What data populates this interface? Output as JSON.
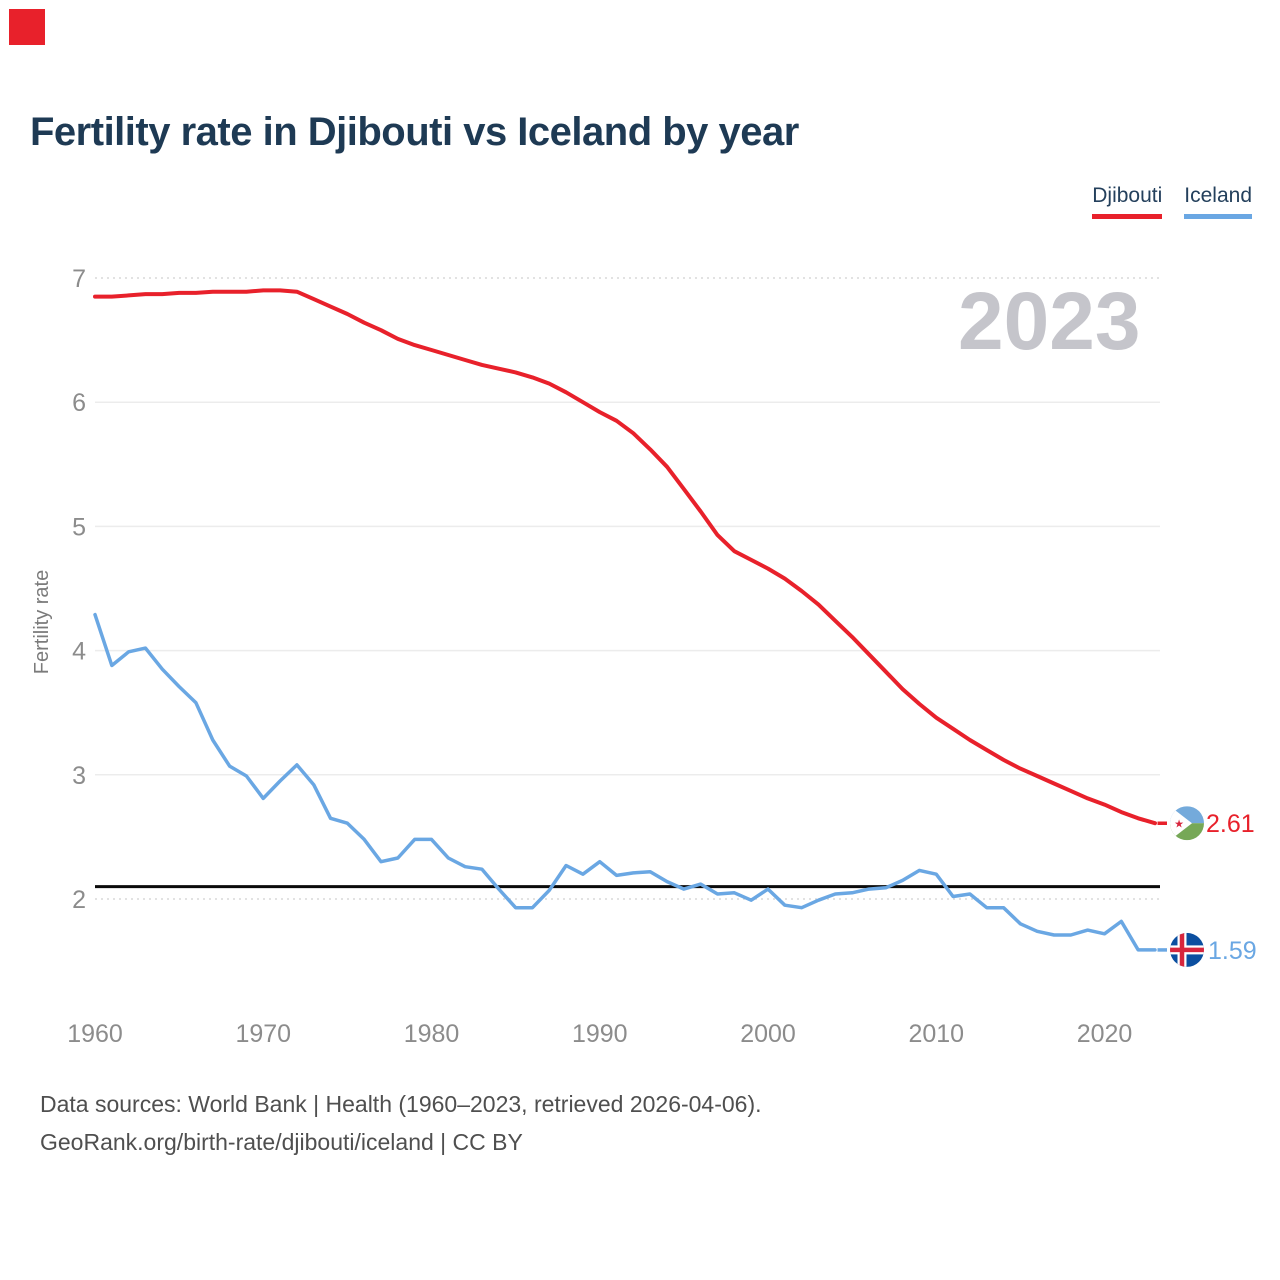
{
  "page": {
    "title": "Fertility rate in Djibouti vs Iceland by year"
  },
  "legend": {
    "djibouti": "Djibouti",
    "iceland": "Iceland"
  },
  "watermark": "2023",
  "end_labels": {
    "djibouti": "2.61",
    "iceland": "1.59"
  },
  "footer": {
    "line1": "Data sources: World Bank | Health (1960–2023, retrieved 2026-04-06).",
    "line2": "GeoRank.org/birth-rate/djibouti/iceland | CC BY"
  },
  "chart_data": {
    "type": "line",
    "title": "Fertility rate in Djibouti vs Iceland by year",
    "xlabel": "",
    "ylabel": "Fertility rate",
    "years_range": [
      1960,
      2023
    ],
    "yticks": [
      2,
      3,
      4,
      5,
      6,
      7
    ],
    "xticks": [
      1960,
      1970,
      1980,
      1990,
      2000,
      2010,
      2020
    ],
    "ylim": [
      1.45,
      7.15
    ],
    "grid": "horizontal",
    "legend_position": "top-right",
    "reference_line": {
      "value": 2.1,
      "color": "#0b0b0b"
    },
    "series": [
      {
        "name": "Djibouti",
        "color": "#e8212b",
        "end_value": 2.61,
        "values": [
          6.85,
          6.85,
          6.86,
          6.87,
          6.87,
          6.88,
          6.88,
          6.89,
          6.89,
          6.89,
          6.9,
          6.9,
          6.89,
          6.83,
          6.77,
          6.71,
          6.64,
          6.58,
          6.51,
          6.46,
          6.42,
          6.38,
          6.34,
          6.3,
          6.27,
          6.24,
          6.2,
          6.15,
          6.08,
          6.0,
          5.92,
          5.85,
          5.75,
          5.62,
          5.48,
          5.3,
          5.12,
          4.93,
          4.8,
          4.73,
          4.66,
          4.58,
          4.48,
          4.37,
          4.24,
          4.11,
          3.97,
          3.83,
          3.69,
          3.57,
          3.46,
          3.37,
          3.28,
          3.2,
          3.12,
          3.05,
          2.99,
          2.93,
          2.87,
          2.81,
          2.76,
          2.7,
          2.65,
          2.61
        ]
      },
      {
        "name": "Iceland",
        "color": "#6aa7e3",
        "end_value": 1.59,
        "values": [
          4.29,
          3.88,
          3.99,
          4.02,
          3.85,
          3.71,
          3.58,
          3.28,
          3.07,
          2.99,
          2.81,
          2.95,
          3.08,
          2.92,
          2.65,
          2.61,
          2.48,
          2.3,
          2.33,
          2.48,
          2.48,
          2.33,
          2.26,
          2.24,
          2.08,
          1.93,
          1.93,
          2.07,
          2.27,
          2.2,
          2.3,
          2.19,
          2.21,
          2.22,
          2.14,
          2.08,
          2.12,
          2.04,
          2.05,
          1.99,
          2.08,
          1.95,
          1.93,
          1.99,
          2.04,
          2.05,
          2.08,
          2.09,
          2.15,
          2.23,
          2.2,
          2.02,
          2.04,
          1.93,
          1.93,
          1.8,
          1.74,
          1.71,
          1.71,
          1.75,
          1.72,
          1.82,
          1.59,
          1.59
        ]
      }
    ]
  }
}
